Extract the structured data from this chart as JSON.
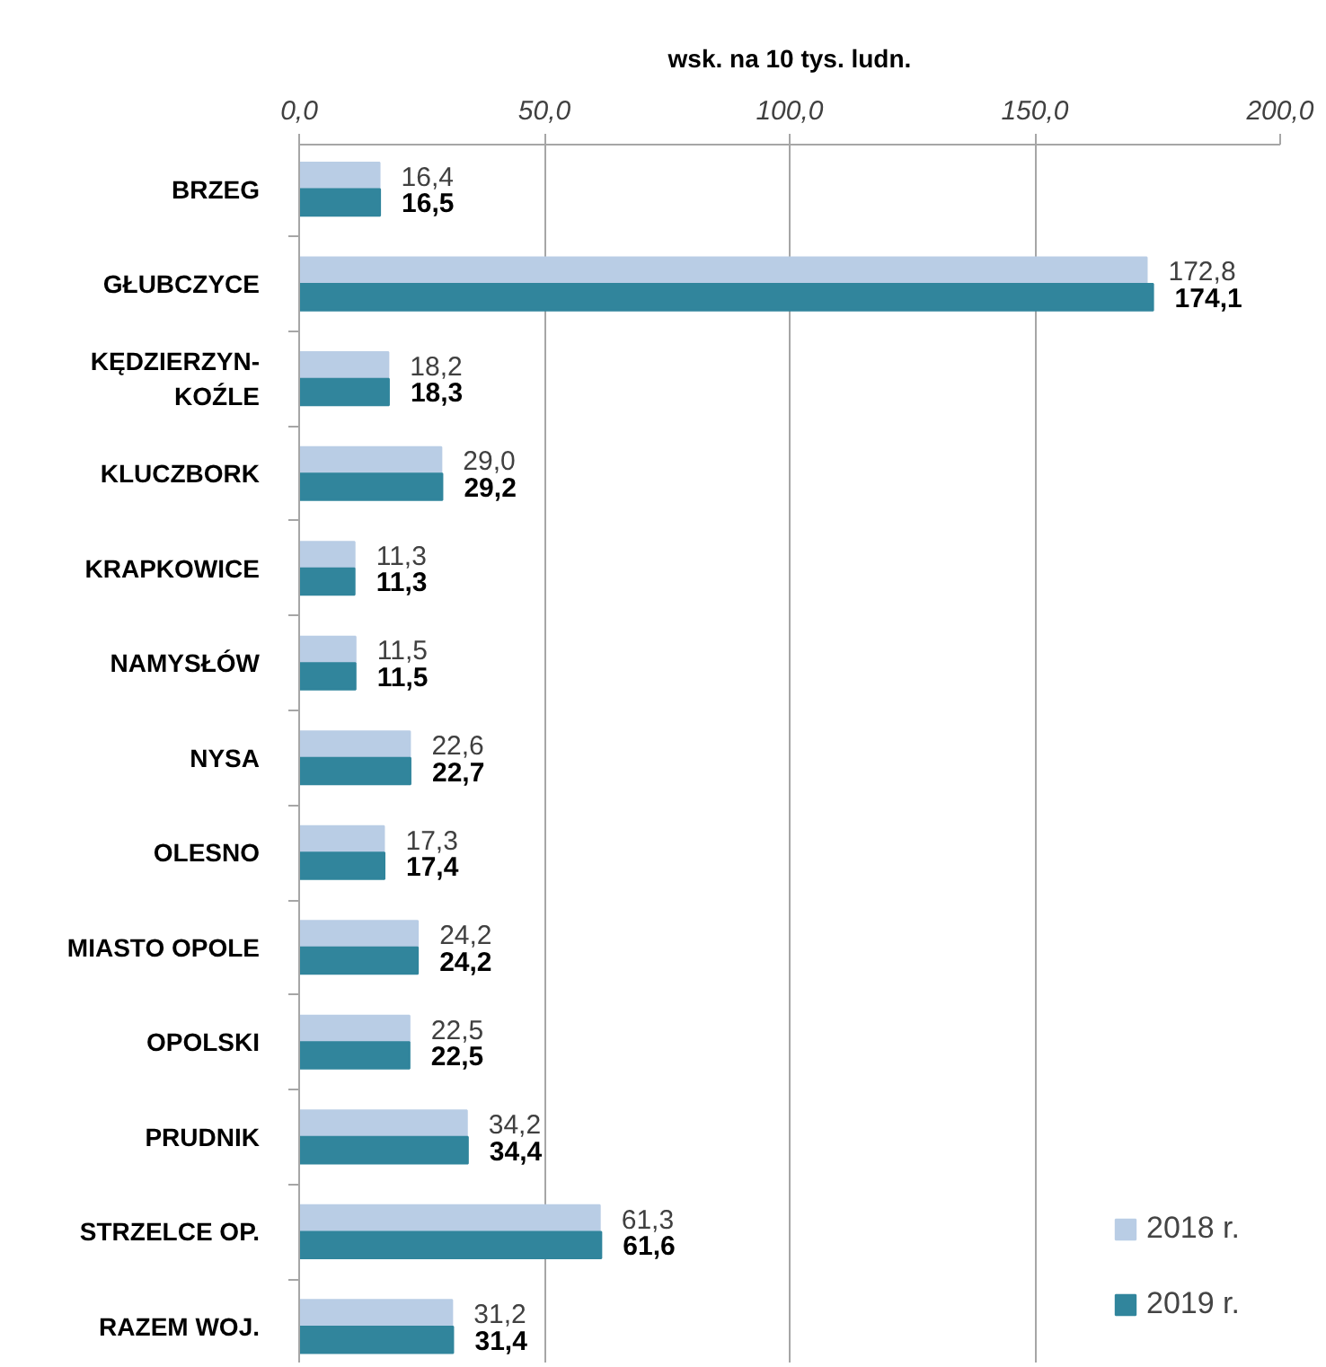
{
  "chart_data": {
    "type": "bar",
    "orientation": "horizontal",
    "xlabel": "wsk. na 10 tys. ludn.",
    "categories": [
      "BRZEG",
      "GŁUBCZYCE",
      "KĘDZIERZYN-KOŹLE",
      "KLUCZBORK",
      "KRAPKOWICE",
      "NAMYSŁÓW",
      "NYSA",
      "OLESNO",
      "MIASTO OPOLE",
      "OPOLSKI",
      "PRUDNIK",
      "STRZELCE OP.",
      "RAZEM WOJ."
    ],
    "series": [
      {
        "name": "2018 r.",
        "color": "#b9cde5",
        "values": [
          16.4,
          172.8,
          18.2,
          29.0,
          11.3,
          11.5,
          22.6,
          17.3,
          24.2,
          22.5,
          34.2,
          61.3,
          31.2
        ],
        "value_labels": [
          "16,4",
          "172,8",
          "18,2",
          "29,0",
          "11,3",
          "11,5",
          "22,6",
          "17,3",
          "24,2",
          "22,5",
          "34,2",
          "61,3",
          "31,2"
        ]
      },
      {
        "name": "2019 r.",
        "color": "#31859c",
        "values": [
          16.5,
          174.1,
          18.3,
          29.2,
          11.3,
          11.5,
          22.7,
          17.4,
          24.2,
          22.5,
          34.4,
          61.6,
          31.4
        ],
        "value_labels": [
          "16,5",
          "174,1",
          "18,3",
          "29,2",
          "11,3",
          "11,5",
          "22,7",
          "17,4",
          "24,2",
          "22,5",
          "34,4",
          "61,6",
          "31,4"
        ]
      }
    ],
    "xlim": [
      0,
      200
    ],
    "xticks": [
      {
        "value": 0,
        "label": "0,0"
      },
      {
        "value": 50,
        "label": "50,0"
      },
      {
        "value": 100,
        "label": "100,0"
      },
      {
        "value": 150,
        "label": "150,0"
      },
      {
        "value": 200,
        "label": "200,0"
      }
    ],
    "grid": "x",
    "legend": "bottom right"
  }
}
